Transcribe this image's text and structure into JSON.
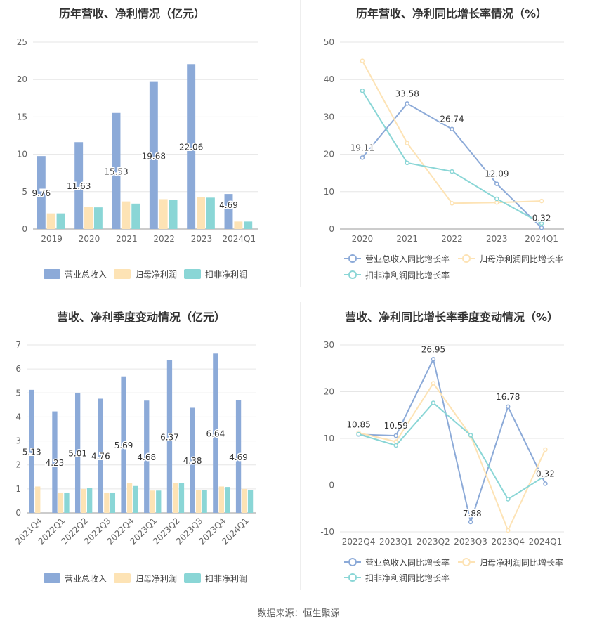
{
  "source_label": "数据来源：恒生聚源",
  "colors": {
    "revenue": "#8caad8",
    "parent_profit": "#fde3b5",
    "deducted_profit": "#8ad6d6",
    "growth_revenue": "#8caad8",
    "growth_parent": "#fde3b5",
    "growth_deducted": "#8ad6d6"
  },
  "chart_data": [
    {
      "id": "annual-bar",
      "type": "bar",
      "title": "历年营收、净利情况（亿元）",
      "categories": [
        "2019",
        "2020",
        "2021",
        "2022",
        "2023",
        "2024Q1"
      ],
      "series": [
        {
          "name": "营业总收入",
          "values": [
            9.76,
            11.63,
            15.53,
            19.68,
            22.06,
            4.69
          ]
        },
        {
          "name": "归母净利润",
          "values": [
            2.1,
            3.0,
            3.7,
            4.0,
            4.3,
            1.0
          ]
        },
        {
          "name": "扣非净利润",
          "values": [
            2.1,
            2.9,
            3.4,
            3.9,
            4.2,
            1.0
          ]
        }
      ],
      "data_labels": [
        "9.76",
        "11.63",
        "15.53",
        "19.68",
        "22.06",
        "4.69"
      ],
      "ylim": [
        0,
        25
      ],
      "yticks": [
        0,
        5,
        10,
        15,
        20,
        25
      ],
      "grid": true,
      "legend": "bottom"
    },
    {
      "id": "annual-growth",
      "type": "line",
      "title": "历年营收、净利同比增长率情况（%）",
      "categories": [
        "2020",
        "2021",
        "2022",
        "2023",
        "2024Q1"
      ],
      "series": [
        {
          "name": "营业总收入同比增长率",
          "values": [
            19.11,
            33.58,
            26.74,
            12.09,
            0.32
          ]
        },
        {
          "name": "归母净利润同比增长率",
          "values": [
            45.0,
            23.0,
            6.9,
            7.1,
            7.5
          ]
        },
        {
          "name": "扣非净利润同比增长率",
          "values": [
            37.0,
            17.7,
            15.4,
            8.1,
            1.5
          ]
        }
      ],
      "data_labels": [
        "19.11",
        "33.58",
        "26.74",
        "12.09",
        "0.32"
      ],
      "ylim": [
        0,
        50
      ],
      "yticks": [
        0,
        10,
        20,
        30,
        40,
        50
      ],
      "grid": true,
      "legend": "bottom"
    },
    {
      "id": "quarterly-bar",
      "type": "bar",
      "title": "营收、净利季度变动情况（亿元）",
      "categories": [
        "2021Q4",
        "2022Q1",
        "2022Q2",
        "2022Q3",
        "2022Q4",
        "2023Q1",
        "2023Q2",
        "2023Q3",
        "2023Q4",
        "2024Q1"
      ],
      "series": [
        {
          "name": "营业总收入",
          "values": [
            5.13,
            4.23,
            5.01,
            4.76,
            5.69,
            4.68,
            6.37,
            4.38,
            6.64,
            4.69
          ]
        },
        {
          "name": "归母净利润",
          "values": [
            1.1,
            0.85,
            1.0,
            0.85,
            1.25,
            0.93,
            1.25,
            0.95,
            1.1,
            1.0
          ]
        },
        {
          "name": "扣非净利润",
          "values": [
            0.0,
            0.85,
            1.05,
            0.85,
            1.12,
            0.93,
            1.25,
            0.95,
            1.08,
            0.95
          ]
        }
      ],
      "data_labels": [
        "5.13",
        "4.23",
        "5.01",
        "4.76",
        "5.69",
        "4.68",
        "6.37",
        "4.38",
        "6.64",
        "4.69"
      ],
      "ylim": [
        0,
        7
      ],
      "yticks": [
        0,
        1,
        2,
        3,
        4,
        5,
        6,
        7
      ],
      "grid": true,
      "legend": "bottom"
    },
    {
      "id": "quarterly-growth",
      "type": "line",
      "title": "营收、净利同比增长率季度变动情况（%）",
      "categories": [
        "2022Q4",
        "2023Q1",
        "2023Q2",
        "2023Q3",
        "2023Q4",
        "2024Q1"
      ],
      "series": [
        {
          "name": "营业总收入同比增长率",
          "values": [
            10.85,
            10.59,
            26.95,
            -7.88,
            16.78,
            0.32
          ]
        },
        {
          "name": "归母净利润同比增长率",
          "values": [
            11.2,
            9.3,
            21.8,
            10.6,
            -9.7,
            7.6
          ]
        },
        {
          "name": "扣非净利润同比增长率",
          "values": [
            10.9,
            8.5,
            17.6,
            10.7,
            -3.0,
            2.0
          ]
        }
      ],
      "data_labels": [
        "10.85",
        "10.59",
        "26.95",
        "-7.88",
        "16.78",
        "0.32"
      ],
      "ylim": [
        -10,
        30
      ],
      "yticks": [
        -10,
        0,
        10,
        20,
        30
      ],
      "grid": true,
      "legend": "bottom"
    }
  ]
}
